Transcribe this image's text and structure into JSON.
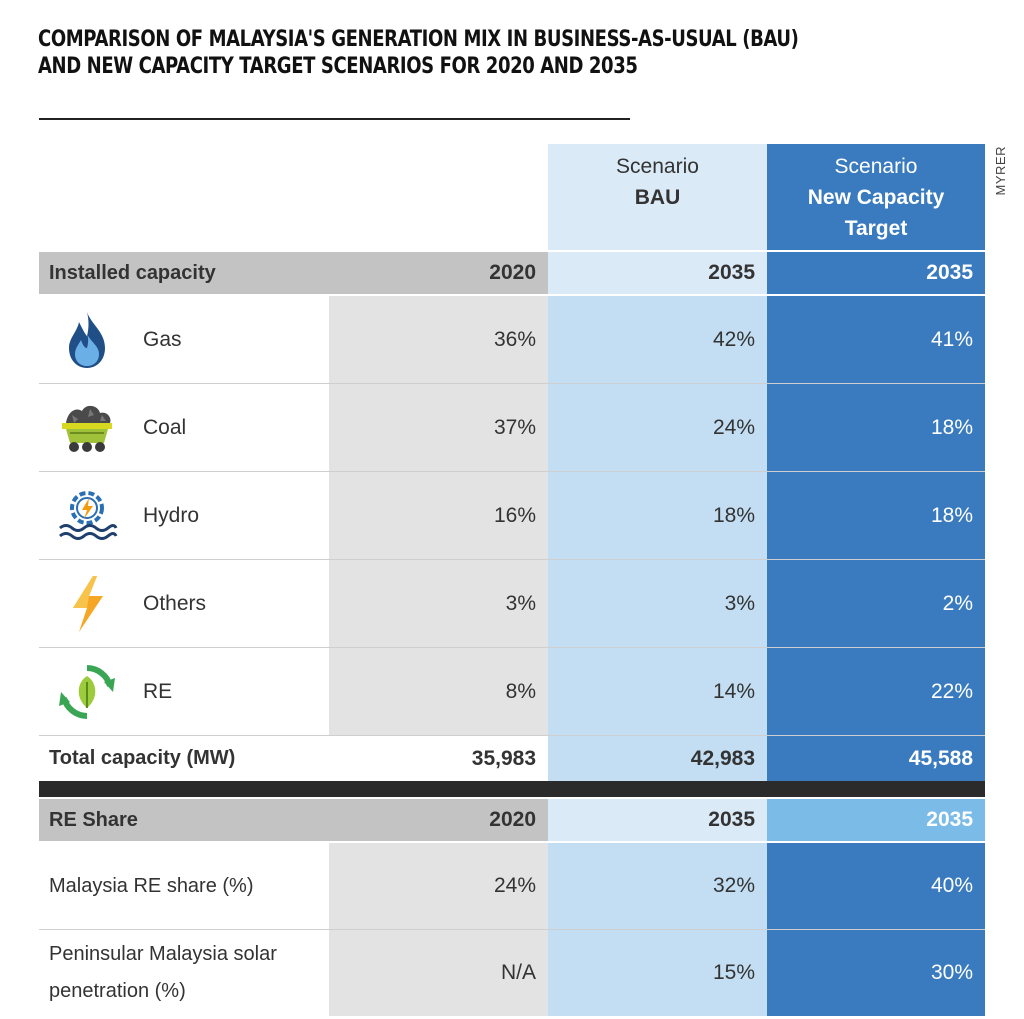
{
  "title_lines": [
    "COMPARISON OF MALAYSIA'S GENERATION MIX IN BUSINESS-AS-USUAL (BAU)",
    "AND NEW CAPACITY TARGET SCENARIOS FOR 2020 AND 2035"
  ],
  "source": "MYRER",
  "colors": {
    "bau_light": "#dbeaf7",
    "bau": "#c3def3",
    "nct": "#3a7bbf",
    "nct_light": "#7bbbe8",
    "grey": "#c3c3c3",
    "grey_light": "#e3e3e3"
  },
  "headers": {
    "bau_line1": "Scenario",
    "bau_line2": "BAU",
    "nct_line1": "Scenario",
    "nct_line2": "New Capacity",
    "nct_line3": "Target"
  },
  "chart_data": {
    "type": "table",
    "title": "COMPARISON OF MALAYSIA'S GENERATION MIX IN BUSINESS-AS-USUAL (BAU) AND NEW CAPACITY TARGET SCENARIOS FOR 2020 AND 2035",
    "columns": [
      "2020",
      "Scenario BAU 2035",
      "Scenario New Capacity Target 2035"
    ],
    "installed": {
      "label": "Installed capacity",
      "years": [
        "2020",
        "2035",
        "2035"
      ],
      "rows": [
        {
          "name": "Gas",
          "icon": "gas-flame-icon",
          "values": [
            "36%",
            "42%",
            "41%"
          ]
        },
        {
          "name": "Coal",
          "icon": "coal-cart-icon",
          "values": [
            "37%",
            "24%",
            "18%"
          ]
        },
        {
          "name": "Hydro",
          "icon": "hydro-icon",
          "values": [
            "16%",
            "18%",
            "18%"
          ]
        },
        {
          "name": "Others",
          "icon": "lightning-icon",
          "values": [
            "3%",
            "3%",
            "2%"
          ]
        },
        {
          "name": "RE",
          "icon": "renewable-leaf-icon",
          "values": [
            "8%",
            "14%",
            "22%"
          ]
        }
      ],
      "total": {
        "name": "Total capacity (MW)",
        "values": [
          "35,983",
          "42,983",
          "45,588"
        ]
      }
    },
    "re_share": {
      "label": "RE Share",
      "years": [
        "2020",
        "2035",
        "2035"
      ],
      "rows": [
        {
          "name": "Malaysia RE share (%)",
          "values": [
            "24%",
            "32%",
            "40%"
          ]
        },
        {
          "name_lines": [
            "Peninsular Malaysia solar",
            "penetration (%)"
          ],
          "values": [
            "N/A",
            "15%",
            "30%"
          ]
        }
      ]
    }
  }
}
